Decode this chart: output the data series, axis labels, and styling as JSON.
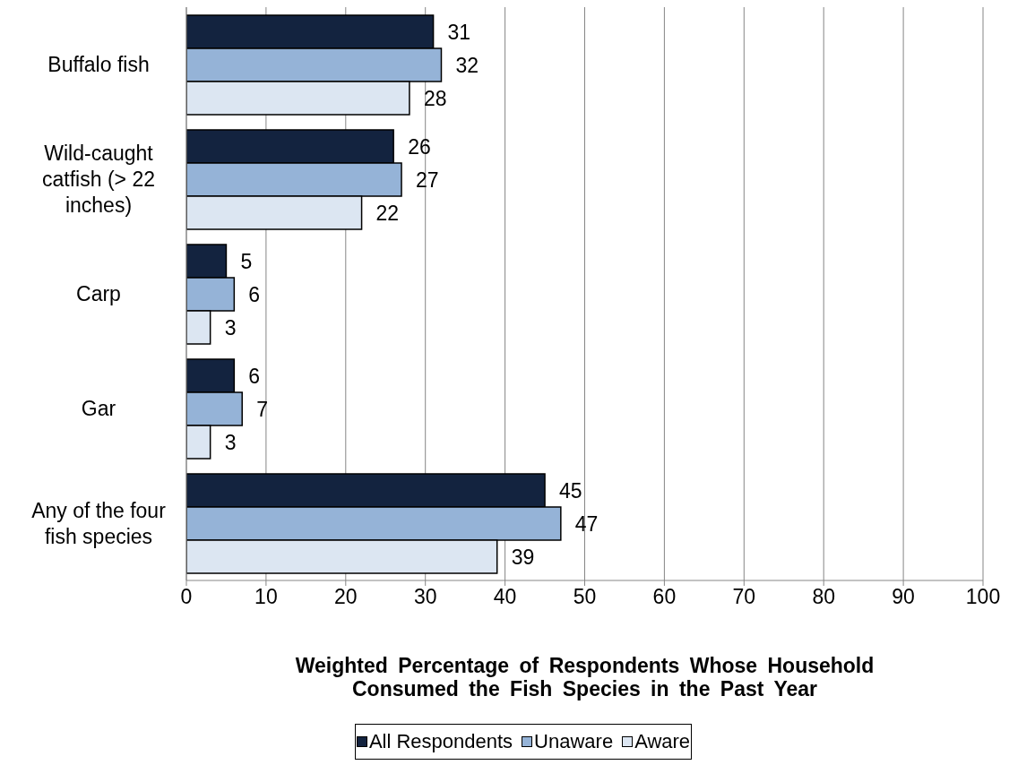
{
  "chart_data": {
    "type": "bar",
    "orientation": "horizontal",
    "categories": [
      "Buffalo fish",
      "Wild-caught catfish (> 22 inches)",
      "Carp",
      "Gar",
      "Any of the four fish species"
    ],
    "series": [
      {
        "name": "All Respondents",
        "color": "#13233f",
        "values": [
          31,
          26,
          5,
          6,
          45
        ]
      },
      {
        "name": "Unaware",
        "color": "#95b3d7",
        "values": [
          32,
          27,
          6,
          7,
          47
        ]
      },
      {
        "name": "Aware",
        "color": "#dce6f2",
        "values": [
          28,
          22,
          3,
          3,
          39
        ]
      }
    ],
    "xlim": [
      0,
      100
    ],
    "xticks": [
      0,
      10,
      20,
      30,
      40,
      50,
      60,
      70,
      80,
      90,
      100
    ],
    "xlabel": "Weighted Percentage of Respondents Whose Household Consumed the Fish Species in the Past Year",
    "grid": "x",
    "legend": "bottom",
    "data_labels": true
  }
}
